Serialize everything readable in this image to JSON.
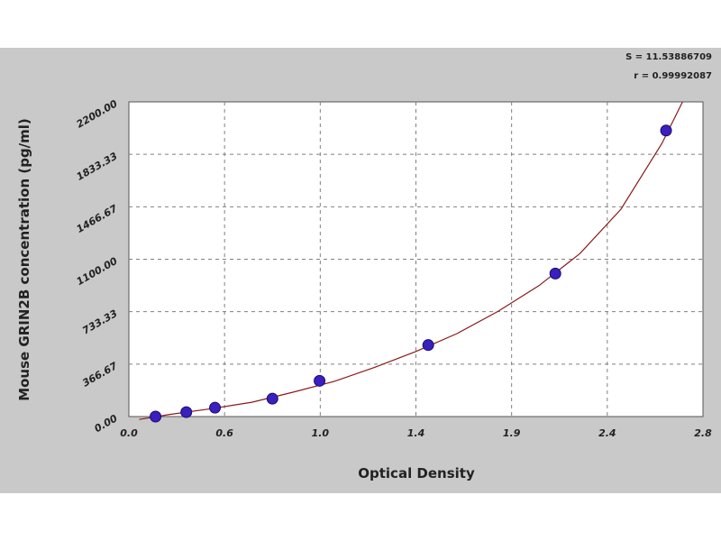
{
  "colors": {
    "background": "#c9c9c9",
    "plot_area": "#ffffff",
    "curve": "#8b1a1a",
    "points": "#3b1fbf",
    "grid": "#808080"
  },
  "stats": {
    "s_label": "S = 11.53886709",
    "r_label": "r = 0.99992087"
  },
  "chart_data": {
    "type": "scatter",
    "xlabel": "Optical Density",
    "ylabel": "Mouse GRIN2B concentration (pg/ml)",
    "xlim": [
      0.0,
      2.8
    ],
    "ylim": [
      0.0,
      2200.0
    ],
    "x_ticks": [
      "0.0",
      "0.6",
      "1.0",
      "1.4",
      "1.9",
      "2.4",
      "2.8"
    ],
    "y_ticks": [
      "0.00",
      "366.67",
      "733.33",
      "1100.00",
      "1466.67",
      "1833.33",
      "2200.00"
    ],
    "grid": true,
    "series": [
      {
        "points_x": [
          0.13,
          0.28,
          0.42,
          0.7,
          0.93,
          1.46,
          2.08,
          2.62
        ],
        "points_y": [
          0,
          31,
          62,
          125,
          250,
          500,
          1000,
          2000
        ]
      }
    ],
    "fit_curve": {
      "x": [
        0.05,
        0.2,
        0.4,
        0.6,
        0.8,
        1.0,
        1.2,
        1.4,
        1.6,
        1.8,
        2.0,
        2.2,
        2.4,
        2.6,
        2.7
      ],
      "y": [
        -20,
        15,
        55,
        100,
        170,
        245,
        345,
        455,
        580,
        735,
        915,
        1140,
        1450,
        1910,
        2200
      ]
    }
  }
}
